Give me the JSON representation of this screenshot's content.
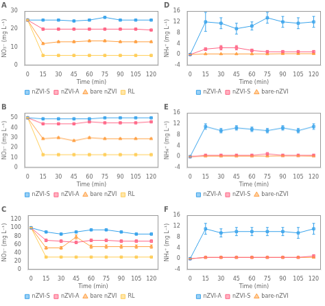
{
  "chart_data": [
    {
      "type": "line",
      "title": "A",
      "xlabel": "Time (min)",
      "ylabel": "NO₃⁻ (mg L⁻¹)",
      "x": [
        0,
        15,
        30,
        45,
        60,
        75,
        90,
        105,
        120
      ],
      "xlim": [
        -3,
        127
      ],
      "xticks": [
        0,
        15,
        30,
        45,
        60,
        75,
        90,
        105,
        120
      ],
      "ylim": [
        0,
        30
      ],
      "yticks": [
        0,
        10,
        20,
        30
      ],
      "grid": false,
      "legend": "bottom",
      "series": [
        {
          "name": "nZVI-S",
          "marker": "square",
          "values": [
            25,
            25,
            25,
            24.5,
            25,
            26.5,
            25,
            25,
            25
          ],
          "errors": [
            0.3,
            0.3,
            0.3,
            0.4,
            0.3,
            0.5,
            0.3,
            0.3,
            0.3
          ]
        },
        {
          "name": "nZVI-A",
          "marker": "square",
          "values": [
            25,
            20,
            20,
            20,
            20,
            20,
            20,
            20,
            19.5
          ],
          "errors": [
            0.3,
            0.5,
            0.4,
            0.3,
            0.4,
            0.4,
            0.3,
            0.4,
            0.3
          ]
        },
        {
          "name": "bare nZVI",
          "marker": "triangle",
          "values": [
            25,
            12,
            13,
            13,
            13.5,
            13.5,
            13,
            13,
            13
          ],
          "errors": [
            0.3,
            0.5,
            0.4,
            0.5,
            0.5,
            0.5,
            0.4,
            0.5,
            0.4
          ]
        },
        {
          "name": "RL",
          "marker": "square",
          "values": [
            25,
            5.5,
            5.5,
            5.5,
            5.5,
            5.5,
            5.5,
            5.5,
            5.5
          ],
          "errors": [
            0.3,
            0.3,
            0.3,
            0.3,
            0.3,
            0.3,
            0.3,
            0.3,
            0.3
          ]
        }
      ]
    },
    {
      "type": "line",
      "title": "B",
      "xlabel": "Time (min)",
      "ylabel": "NO₃⁻ (mg L⁻¹)",
      "x": [
        0,
        15,
        30,
        45,
        60,
        75,
        90,
        105,
        120
      ],
      "xlim": [
        -3,
        127
      ],
      "xticks": [
        0,
        15,
        30,
        45,
        60,
        75,
        90,
        105,
        120
      ],
      "ylim": [
        0,
        55
      ],
      "yticks": [
        0,
        10,
        20,
        30,
        40,
        50
      ],
      "grid": false,
      "legend": "bottom",
      "series": [
        {
          "name": "nZVI-S",
          "marker": "square",
          "values": [
            50,
            49,
            49,
            49,
            49,
            50,
            50,
            50,
            50
          ],
          "errors": [
            0.3,
            0.5,
            0.4,
            0.4,
            0.4,
            0.4,
            0.3,
            0.4,
            0.3
          ]
        },
        {
          "name": "nZVI-A",
          "marker": "square",
          "values": [
            50,
            44,
            44,
            44,
            46,
            45,
            45,
            45,
            46
          ],
          "errors": [
            0.3,
            0.5,
            0.5,
            0.5,
            0.5,
            0.5,
            0.5,
            0.5,
            0.5
          ]
        },
        {
          "name": "bare nZVI",
          "marker": "triangle",
          "values": [
            50,
            29,
            30,
            27,
            30,
            29,
            29,
            29,
            29
          ],
          "errors": [
            0.3,
            0.8,
            0.7,
            0.8,
            0.8,
            0.8,
            0.7,
            0.7,
            0.7
          ]
        },
        {
          "name": "RL",
          "marker": "square",
          "values": [
            50,
            13,
            13,
            13,
            13,
            13,
            13,
            13,
            13
          ],
          "errors": [
            0.3,
            0.5,
            0.5,
            0.5,
            0.5,
            0.5,
            0.5,
            0.5,
            0.5
          ]
        }
      ]
    },
    {
      "type": "line",
      "title": "C",
      "xlabel": "Time (min)",
      "ylabel": "NO₃⁻ (mg L⁻¹)",
      "x": [
        0,
        15,
        30,
        45,
        60,
        75,
        90,
        105,
        120
      ],
      "xlim": [
        -3,
        127
      ],
      "xticks": [
        0,
        15,
        30,
        45,
        60,
        75,
        90,
        105,
        120
      ],
      "ylim": [
        0,
        130
      ],
      "yticks": [
        0,
        20,
        40,
        60,
        80,
        100,
        120
      ],
      "grid": false,
      "legend": "bottom",
      "series": [
        {
          "name": "nZVI-S",
          "marker": "square",
          "values": [
            100,
            90,
            85,
            90,
            95,
            95,
            90,
            85,
            85
          ],
          "errors": [
            0.5,
            2,
            2,
            2,
            2,
            2,
            2,
            2,
            2
          ]
        },
        {
          "name": "nZVI-A",
          "marker": "square",
          "values": [
            100,
            70,
            68,
            65,
            70,
            70,
            68,
            68,
            68
          ],
          "errors": [
            0.5,
            3,
            3,
            3,
            3,
            3,
            3,
            3,
            3
          ]
        },
        {
          "name": "bare nZVI",
          "marker": "triangle",
          "values": [
            100,
            52,
            52,
            78,
            55,
            55,
            55,
            55,
            55
          ],
          "errors": [
            0.5,
            3,
            3,
            5,
            4,
            4,
            4,
            4,
            4
          ]
        },
        {
          "name": "RL",
          "marker": "square",
          "values": [
            100,
            30,
            30,
            30,
            30,
            30,
            30,
            30,
            30
          ],
          "errors": [
            0.5,
            1,
            1,
            1,
            1,
            1,
            1,
            1,
            1
          ]
        }
      ]
    },
    {
      "type": "line",
      "title": "D",
      "xlabel": "Time (min)",
      "ylabel": "NH₄⁺ (mg L⁻¹)",
      "x": [
        0,
        15,
        30,
        45,
        60,
        75,
        90,
        105,
        120
      ],
      "xlim": [
        -3,
        127
      ],
      "xticks": [
        0,
        15,
        30,
        45,
        60,
        75,
        90,
        105,
        120
      ],
      "ylim": [
        -4,
        16
      ],
      "yticks": [
        -4,
        0,
        4,
        8,
        12,
        16
      ],
      "grid": false,
      "legend": "bottom",
      "series": [
        {
          "name": "nZVI-A",
          "marker": "square",
          "values": [
            0,
            12,
            11.5,
            9.5,
            10.5,
            13.5,
            12,
            11.5,
            12
          ],
          "errors": [
            0.1,
            3.5,
            2,
            2,
            1.5,
            2,
            2,
            2,
            2
          ]
        },
        {
          "name": "nZVI-S",
          "marker": "square",
          "values": [
            0,
            2,
            2.5,
            2.5,
            1.5,
            1,
            1,
            1,
            1
          ],
          "errors": [
            0.1,
            0.5,
            0.8,
            0.8,
            0.5,
            0.5,
            0.5,
            0.5,
            0.5
          ]
        },
        {
          "name": "bare-nZVI",
          "marker": "triangle",
          "values": [
            0,
            0.2,
            0.2,
            0.2,
            0.2,
            0.2,
            0.3,
            0.3,
            0.3
          ],
          "errors": [
            0.05,
            0.1,
            0.1,
            0.1,
            0.1,
            0.1,
            0.1,
            0.1,
            0.1
          ]
        }
      ]
    },
    {
      "type": "line",
      "title": "E",
      "xlabel": "Time (min)",
      "ylabel": "NH₄⁺ (mg L⁻¹)",
      "x": [
        0,
        15,
        30,
        45,
        60,
        75,
        90,
        105,
        120
      ],
      "xlim": [
        -3,
        127
      ],
      "xticks": [
        0,
        15,
        30,
        45,
        60,
        75,
        90,
        105,
        120
      ],
      "ylim": [
        -4,
        16
      ],
      "yticks": [
        -4,
        0,
        4,
        8,
        12,
        16
      ],
      "grid": false,
      "legend": "bottom",
      "series": [
        {
          "name": "nZVI-A",
          "marker": "square",
          "values": [
            0,
            11,
            9.5,
            10.5,
            10,
            9.5,
            10.5,
            9.5,
            11
          ],
          "errors": [
            0.1,
            1,
            0.8,
            0.8,
            0.8,
            0.8,
            0.8,
            0.8,
            1
          ]
        },
        {
          "name": "nZVI-S",
          "marker": "square",
          "values": [
            0,
            0.5,
            0.5,
            0.5,
            0.5,
            1,
            0.5,
            0.5,
            0.5
          ],
          "errors": [
            0.1,
            0.3,
            0.3,
            0.3,
            0.3,
            0.5,
            0.3,
            0.3,
            0.3
          ]
        },
        {
          "name": "bare-nZVI",
          "marker": "triangle",
          "values": [
            0,
            0.2,
            0.2,
            0.2,
            0.2,
            0.2,
            0.3,
            0.3,
            0.2
          ],
          "errors": [
            0.05,
            0.1,
            0.1,
            0.1,
            0.1,
            0.1,
            0.1,
            0.1,
            0.1
          ]
        }
      ]
    },
    {
      "type": "line",
      "title": "F",
      "xlabel": "Time (min)",
      "ylabel": "NH₄⁺ (mg L⁻¹)",
      "x": [
        0,
        15,
        30,
        45,
        60,
        75,
        90,
        105,
        120
      ],
      "xlim": [
        -3,
        127
      ],
      "xticks": [
        0,
        15,
        30,
        45,
        60,
        75,
        90,
        105,
        120
      ],
      "ylim": [
        -4,
        16
      ],
      "yticks": [
        -4,
        0,
        4,
        8,
        12,
        16
      ],
      "grid": false,
      "legend": "bottom",
      "series": [
        {
          "name": "nZVI-A",
          "marker": "square",
          "values": [
            0,
            11,
            9.5,
            10,
            10,
            10,
            10,
            9.5,
            11
          ],
          "errors": [
            0.1,
            2,
            1.5,
            1.5,
            1.5,
            1.5,
            1.5,
            2,
            2
          ]
        },
        {
          "name": "nZVI-S",
          "marker": "square",
          "values": [
            0,
            0.5,
            0.5,
            0.5,
            0.5,
            0.5,
            0.5,
            0.5,
            1
          ],
          "errors": [
            0.1,
            0.3,
            0.3,
            0.3,
            0.3,
            0.3,
            0.3,
            0.3,
            0.5
          ]
        },
        {
          "name": "bare-nZVI",
          "marker": "triangle",
          "values": [
            0,
            0.5,
            0.5,
            0.5,
            0.5,
            0.5,
            0.5,
            0.5,
            0.5
          ],
          "errors": [
            0.05,
            0.3,
            0.3,
            0.3,
            0.3,
            0.3,
            0.3,
            0.3,
            0.3
          ]
        }
      ]
    }
  ]
}
